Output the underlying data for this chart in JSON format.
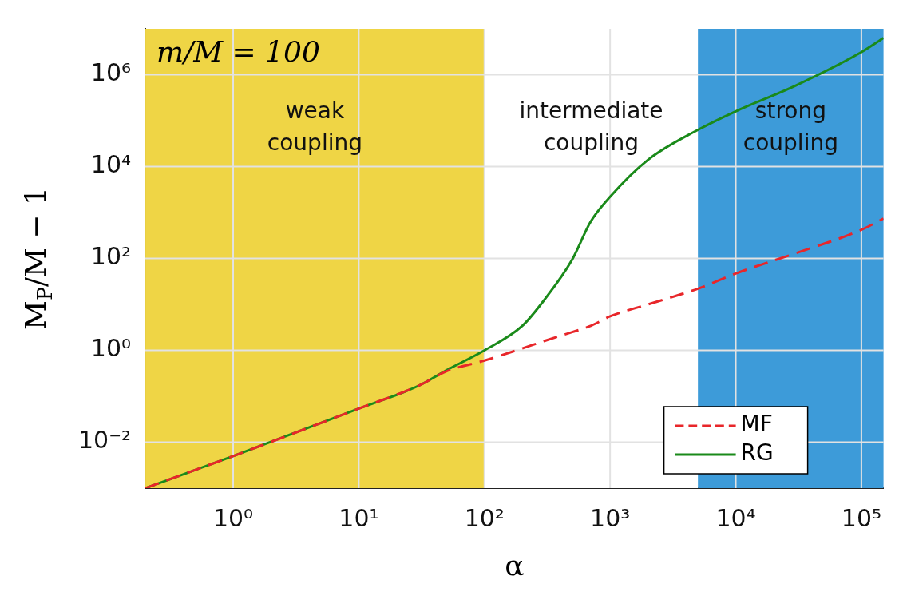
{
  "chart_data": {
    "type": "line",
    "xlabel": "α",
    "ylabel": "M$_{P}$/M − 1",
    "log": "xy",
    "grid": true,
    "legend": "bottom right",
    "marker": "none",
    "x": [
      0.2,
      1,
      10,
      30,
      50,
      100,
      200,
      300,
      500,
      700,
      1000,
      2000,
      5000,
      10000,
      30000,
      100000,
      150000
    ],
    "xlim": [
      0.2,
      150000
    ],
    "ylim": [
      0.001,
      10000000
    ],
    "xticks": [
      {
        "value": 1,
        "label": "10⁰"
      },
      {
        "value": 10,
        "label": "10¹"
      },
      {
        "value": 100,
        "label": "10²"
      },
      {
        "value": 1000,
        "label": "10³"
      },
      {
        "value": 10000,
        "label": "10⁴"
      },
      {
        "value": 100000,
        "label": "10⁵"
      }
    ],
    "yticks": [
      {
        "value": 0.01,
        "label": "10⁻²"
      },
      {
        "value": 1,
        "label": "10⁰"
      },
      {
        "value": 100,
        "label": "10²"
      },
      {
        "value": 10000,
        "label": "10⁴"
      },
      {
        "value": 1000000,
        "label": "10⁶"
      }
    ],
    "series": [
      {
        "name": "MF",
        "color": "#e8262a",
        "line_style": "dashed",
        "values": [
          0.001,
          0.005,
          0.054,
          0.17,
          0.35,
          0.6,
          1.1,
          1.6,
          2.5,
          3.4,
          5.5,
          10,
          22,
          47,
          130,
          420,
          740
        ]
      },
      {
        "name": "RG",
        "color": "#1a8a1a",
        "line_style": "solid",
        "values": [
          0.001,
          0.005,
          0.054,
          0.17,
          0.37,
          1,
          3.4,
          12.6,
          95,
          630,
          2200,
          14000,
          63000,
          160000,
          580000,
          3100000,
          6300000
        ]
      }
    ],
    "bands": [
      {
        "axis": "x",
        "from": 0.2,
        "to": 100,
        "label": "weak coupling",
        "color": "#efd545"
      },
      {
        "axis": "x",
        "from": 100,
        "to": 5000,
        "label": "intermediate coupling",
        "color": "#ffffff"
      },
      {
        "axis": "x",
        "from": 5000,
        "to": 150000,
        "label": "strong coupling",
        "color": "#3d9bd9"
      }
    ],
    "annotations": [
      "m/M = 100"
    ]
  }
}
